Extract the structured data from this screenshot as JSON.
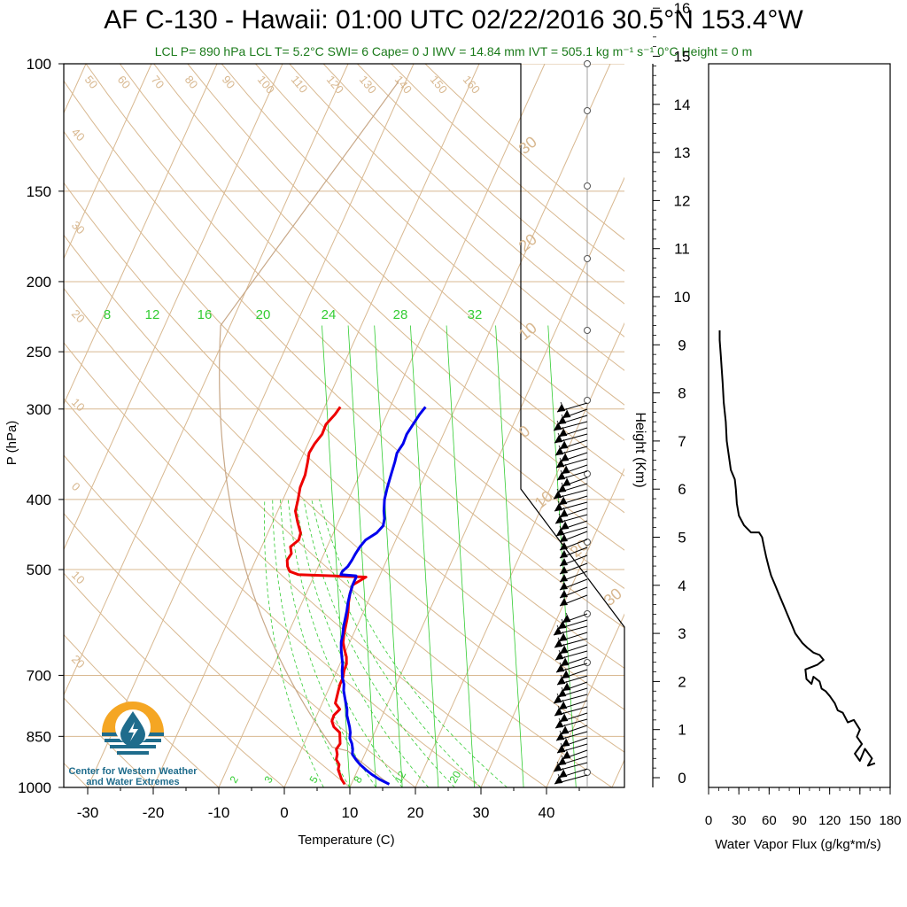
{
  "title": "AF C-130 - Hawaii: 01:00 UTC 02/22/2016  30.5°N 153.4°W",
  "subtitle": "LCL P= 890 hPa  LCL T= 5.2°C  SWI= 6  Cape= 0 J  IWV = 14.84 mm  IVT = 505.1 kg m⁻¹ s⁻¹  0°C Height = 0 m",
  "logo": {
    "text_line1": "Center for Western Weather",
    "text_line2": "and Water Extremes"
  },
  "colors": {
    "temperature": "#ee0000",
    "dewpoint": "#0000ee",
    "mixing_ratio": "#33cc33",
    "skew_lines": "#d8b890",
    "flux": "#000000"
  },
  "chart_data": [
    {
      "type": "line",
      "name": "skew-t",
      "xlabel": "Temperature (C)",
      "ylabel": "P (hPa)",
      "x_ticks": [
        -30,
        -20,
        -10,
        0,
        10,
        20,
        30,
        40
      ],
      "y_ticks": [
        100,
        150,
        200,
        250,
        300,
        400,
        500,
        700,
        850,
        1000
      ],
      "y_scale": "log",
      "ylim": [
        1000,
        100
      ],
      "mixing_ratio_labels": [
        "8",
        "12",
        "16",
        "20",
        "24",
        "28",
        "32"
      ],
      "mixing_ratio_labels_bottom": [
        "2",
        "3",
        "5",
        "8",
        "12",
        "20"
      ],
      "dry_adiabat_labels": [
        "50",
        "60",
        "70",
        "80",
        "90",
        "100",
        "110",
        "120",
        "130",
        "140",
        "150",
        "160"
      ],
      "isotherm_labels_left": [
        "40",
        "30",
        "20",
        "10",
        "0",
        "10",
        "20"
      ],
      "isotherm_labels_right": [
        "30",
        "20",
        "10",
        "0",
        "10",
        "20",
        "30"
      ],
      "series": [
        {
          "values": [
            [
              990,
              9.0
            ],
            [
              975,
              8.2
            ],
            [
              960,
              7.6
            ],
            [
              945,
              7.0
            ],
            [
              930,
              6.8
            ],
            [
              915,
              6.0
            ],
            [
              900,
              5.8
            ],
            [
              885,
              5.3
            ],
            [
              870,
              5.5
            ],
            [
              855,
              5.1
            ],
            [
              840,
              4.7
            ],
            [
              825,
              3.4
            ],
            [
              810,
              2.7
            ],
            [
              795,
              2.6
            ],
            [
              780,
              3.1
            ],
            [
              765,
              2.0
            ],
            [
              750,
              1.8
            ],
            [
              735,
              1.6
            ],
            [
              720,
              1.4
            ],
            [
              705,
              1.4
            ],
            [
              690,
              1.1
            ],
            [
              675,
              1.0
            ],
            [
              660,
              0.5
            ],
            [
              645,
              -0.3
            ],
            [
              630,
              -1.0
            ],
            [
              615,
              -1.4
            ],
            [
              600,
              -1.7
            ],
            [
              585,
              -2.0
            ],
            [
              570,
              -2.4
            ],
            [
              555,
              -2.9
            ],
            [
              540,
              -3.3
            ],
            [
              525,
              -3.5
            ],
            [
              512,
              -2.0
            ],
            [
              508,
              -12.5
            ],
            [
              503,
              -14.0
            ],
            [
              495,
              -14.7
            ],
            [
              485,
              -15.2
            ],
            [
              475,
              -15.0
            ],
            [
              465,
              -15.6
            ],
            [
              455,
              -14.8
            ],
            [
              445,
              -15.0
            ],
            [
              430,
              -16.2
            ],
            [
              415,
              -17.3
            ],
            [
              400,
              -17.7
            ],
            [
              385,
              -18.2
            ],
            [
              370,
              -18.3
            ],
            [
              355,
              -18.8
            ],
            [
              345,
              -19.2
            ],
            [
              335,
              -19.0
            ],
            [
              325,
              -18.5
            ],
            [
              315,
              -18.6
            ],
            [
              305,
              -17.9
            ],
            [
              298,
              -17.6
            ]
          ]
        },
        {
          "values": [
            [
              990,
              15.8
            ],
            [
              975,
              14.0
            ],
            [
              960,
              12.5
            ],
            [
              945,
              11.2
            ],
            [
              930,
              10.0
            ],
            [
              915,
              9.0
            ],
            [
              900,
              8.1
            ],
            [
              885,
              7.8
            ],
            [
              870,
              7.3
            ],
            [
              855,
              6.6
            ],
            [
              840,
              6.3
            ],
            [
              825,
              5.8
            ],
            [
              810,
              5.2
            ],
            [
              795,
              4.6
            ],
            [
              780,
              4.2
            ],
            [
              765,
              3.6
            ],
            [
              750,
              3.0
            ],
            [
              735,
              2.4
            ],
            [
              720,
              2.0
            ],
            [
              705,
              1.3
            ],
            [
              690,
              0.8
            ],
            [
              675,
              0.4
            ],
            [
              660,
              -0.2
            ],
            [
              645,
              -0.8
            ],
            [
              630,
              -1.3
            ],
            [
              615,
              -1.6
            ],
            [
              600,
              -2.0
            ],
            [
              585,
              -2.3
            ],
            [
              570,
              -2.6
            ],
            [
              555,
              -3.0
            ],
            [
              540,
              -3.3
            ],
            [
              525,
              -3.5
            ],
            [
              512,
              -3.5
            ],
            [
              510,
              -3.6
            ],
            [
              508,
              -6.0
            ],
            [
              503,
              -6.0
            ],
            [
              495,
              -5.5
            ],
            [
              485,
              -5.3
            ],
            [
              475,
              -5.2
            ],
            [
              465,
              -5.0
            ],
            [
              455,
              -4.6
            ],
            [
              445,
              -3.4
            ],
            [
              435,
              -2.9
            ],
            [
              425,
              -3.2
            ],
            [
              415,
              -3.8
            ],
            [
              400,
              -4.5
            ],
            [
              385,
              -4.9
            ],
            [
              370,
              -5.2
            ],
            [
              355,
              -5.5
            ],
            [
              345,
              -5.8
            ],
            [
              335,
              -5.5
            ],
            [
              325,
              -5.6
            ],
            [
              315,
              -5.3
            ],
            [
              305,
              -5.0
            ],
            [
              298,
              -4.6
            ]
          ]
        }
      ]
    },
    {
      "type": "line",
      "name": "water-vapor-flux",
      "xlabel": "Water Vapor Flux (g/kg*m/s)",
      "ylabel": "Height (Km)",
      "xlim": [
        0,
        180
      ],
      "ylim": [
        0,
        16
      ],
      "x_ticks": [
        0,
        30,
        60,
        90,
        120,
        150,
        180
      ],
      "y_ticks": [
        0,
        1,
        2,
        3,
        4,
        5,
        6,
        7,
        8,
        9,
        10,
        11,
        12,
        13,
        14,
        15,
        16
      ],
      "points": [
        [
          165,
          0.3
        ],
        [
          158,
          0.25
        ],
        [
          162,
          0.4
        ],
        [
          155,
          0.6
        ],
        [
          150,
          0.35
        ],
        [
          145,
          0.5
        ],
        [
          152,
          0.7
        ],
        [
          147,
          0.85
        ],
        [
          150,
          1.0
        ],
        [
          144,
          1.2
        ],
        [
          138,
          1.15
        ],
        [
          133,
          1.35
        ],
        [
          128,
          1.4
        ],
        [
          125,
          1.55
        ],
        [
          120,
          1.7
        ],
        [
          116,
          1.8
        ],
        [
          112,
          1.85
        ],
        [
          110,
          2.0
        ],
        [
          104,
          2.1
        ],
        [
          102,
          1.95
        ],
        [
          97,
          2.05
        ],
        [
          96,
          2.25
        ],
        [
          108,
          2.35
        ],
        [
          114,
          2.45
        ],
        [
          110,
          2.55
        ],
        [
          104,
          2.6
        ],
        [
          98,
          2.7
        ],
        [
          93,
          2.8
        ],
        [
          86,
          3.0
        ],
        [
          82,
          3.2
        ],
        [
          78,
          3.4
        ],
        [
          74,
          3.6
        ],
        [
          70,
          3.8
        ],
        [
          66,
          4.0
        ],
        [
          62,
          4.2
        ],
        [
          60,
          4.35
        ],
        [
          57,
          4.6
        ],
        [
          55,
          4.8
        ],
        [
          53,
          5.0
        ],
        [
          50,
          5.1
        ],
        [
          42,
          5.1
        ],
        [
          35,
          5.25
        ],
        [
          30,
          5.45
        ],
        [
          28,
          5.7
        ],
        [
          27,
          6.0
        ],
        [
          26,
          6.2
        ],
        [
          22,
          6.4
        ],
        [
          20,
          6.7
        ],
        [
          18,
          7.0
        ],
        [
          17,
          7.4
        ],
        [
          15,
          7.8
        ],
        [
          14,
          8.2
        ],
        [
          13,
          8.5
        ],
        [
          12,
          8.8
        ],
        [
          11,
          9.1
        ],
        [
          11,
          9.3
        ]
      ]
    }
  ]
}
